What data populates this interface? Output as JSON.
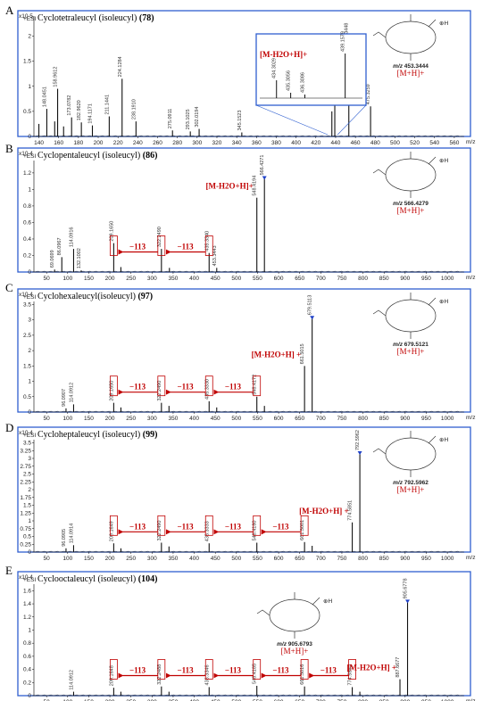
{
  "chart_data": [
    {
      "type": "bar",
      "panel_letter": "A",
      "scale": "x10 5",
      "ion_mode": "+ESI",
      "title": "Cyclotetraleucyl (isoleucyl)",
      "compound_number": "(78)",
      "x_unit": "m/z",
      "xlim": [
        135,
        570
      ],
      "ylim": [
        0,
        2.4
      ],
      "xticks": [
        140,
        160,
        180,
        200,
        220,
        240,
        260,
        280,
        300,
        320,
        340,
        360,
        380,
        400,
        420,
        440,
        460,
        480,
        500,
        520,
        540,
        560
      ],
      "yticks": [
        0,
        0.5,
        1,
        1.5,
        2
      ],
      "peaks": [
        {
          "x": 140.0,
          "y": 0.25
        },
        {
          "x": 148.0451,
          "y": 0.55,
          "label": "148.0451"
        },
        {
          "x": 156.0,
          "y": 0.3
        },
        {
          "x": 158.9612,
          "y": 0.95,
          "label": "158.9612"
        },
        {
          "x": 165.0,
          "y": 0.2
        },
        {
          "x": 173.0782,
          "y": 0.38,
          "label": "173.0782"
        },
        {
          "x": 182.962,
          "y": 0.28,
          "label": "182.9620"
        },
        {
          "x": 194.1171,
          "y": 0.22,
          "label": "194.1171"
        },
        {
          "x": 211.1441,
          "y": 0.4,
          "label": "211.1441"
        },
        {
          "x": 224.1284,
          "y": 1.15,
          "label": "224.1284"
        },
        {
          "x": 238.191,
          "y": 0.3,
          "label": "238.1910"
        },
        {
          "x": 275.0911,
          "y": 0.12,
          "label": "275.0911"
        },
        {
          "x": 293.1025,
          "y": 0.1,
          "label": "293.1025"
        },
        {
          "x": 302.0194,
          "y": 0.15,
          "label": "302.0194"
        },
        {
          "x": 345.1523,
          "y": 0.08,
          "label": "345.1523"
        },
        {
          "x": 436.2,
          "y": 0.5
        },
        {
          "x": 439.1579,
          "y": 1.05,
          "label": "439.1579"
        },
        {
          "x": 453.3448,
          "y": 1.82,
          "label": "453.3448"
        },
        {
          "x": 475.3259,
          "y": 0.6,
          "label": "475.3259"
        }
      ],
      "inset": {
        "annotation": "[M-H2O+H]+",
        "peaks": [
          {
            "x": 434.3029,
            "y": 0.4,
            "label": "434.3029"
          },
          {
            "x": 435.3056,
            "y": 0.12,
            "label": "435.3056"
          },
          {
            "x": 436.3086,
            "y": 0.08,
            "label": "436.3086"
          },
          {
            "x": 439.1579,
            "y": 1.0,
            "label": "439.1579"
          }
        ]
      },
      "structure": {
        "mz_text": "m/z 453.3444",
        "ion_label": "[M+H]+"
      },
      "annotations": []
    },
    {
      "type": "bar",
      "panel_letter": "B",
      "scale": "x10 4",
      "ion_mode": "+ESI",
      "title": "Cyclopentaleucyl (isoleucyl)",
      "compound_number": "(86)",
      "x_unit": "m/z",
      "xlim": [
        20,
        1040
      ],
      "ylim": [
        0,
        1.35
      ],
      "xticks": [
        50,
        100,
        150,
        200,
        250,
        300,
        350,
        400,
        450,
        500,
        550,
        600,
        650,
        700,
        750,
        800,
        850,
        900,
        950,
        1000
      ],
      "yticks": [
        0,
        0.2,
        0.4,
        0.6,
        0.8,
        1,
        1.2
      ],
      "peaks": [
        {
          "x": 69.0699,
          "y": 0.03,
          "label": "69.0699"
        },
        {
          "x": 86.0967,
          "y": 0.18,
          "label": "86.0967"
        },
        {
          "x": 114.0916,
          "y": 0.28,
          "label": "114.0916"
        },
        {
          "x": 132.1002,
          "y": 0.02,
          "label": "132.1002"
        },
        {
          "x": 209.165,
          "y": 0.35,
          "label": "209.1650"
        },
        {
          "x": 226.1,
          "y": 0.06
        },
        {
          "x": 322.249,
          "y": 0.28,
          "label": "322.2490"
        },
        {
          "x": 341.2,
          "y": 0.05
        },
        {
          "x": 435.334,
          "y": 0.23,
          "label": "435.3340"
        },
        {
          "x": 453.3443,
          "y": 0.05,
          "label": "453.3443"
        },
        {
          "x": 548.4194,
          "y": 0.9,
          "label": "548.4194"
        },
        {
          "x": 566.4271,
          "y": 1.15,
          "label": "566.4271"
        }
      ],
      "structure": {
        "mz_text": "m/z 566.4279",
        "ion_label": "[M+H]+"
      },
      "m_h2o_label": "[M-H2O+H]+",
      "loss_label": "−113"
    },
    {
      "type": "bar",
      "panel_letter": "C",
      "scale": "x10 4",
      "ion_mode": "+ESI",
      "title": "Cyclohexaleucyl(isoleucyl)",
      "compound_number": "(97)",
      "x_unit": "m/z",
      "xlim": [
        20,
        1040
      ],
      "ylim": [
        0,
        3.6
      ],
      "xticks": [
        50,
        100,
        150,
        200,
        250,
        300,
        350,
        400,
        450,
        500,
        550,
        600,
        650,
        700,
        750,
        800,
        850,
        900,
        950,
        1000
      ],
      "yticks": [
        0,
        0.5,
        1,
        1.5,
        2,
        2.5,
        3,
        3.5
      ],
      "peaks": [
        {
          "x": 96.0907,
          "y": 0.12,
          "label": "96.0907"
        },
        {
          "x": 114.0912,
          "y": 0.25,
          "label": "114.0912"
        },
        {
          "x": 209.165,
          "y": 0.3,
          "label": "209.1650"
        },
        {
          "x": 226.2,
          "y": 0.15
        },
        {
          "x": 322.249,
          "y": 0.3,
          "label": "322.2490"
        },
        {
          "x": 340.2,
          "y": 0.2
        },
        {
          "x": 435.333,
          "y": 0.35,
          "label": "435.3330"
        },
        {
          "x": 453.3,
          "y": 0.15
        },
        {
          "x": 548.4172,
          "y": 0.5,
          "label": "548.4172"
        },
        {
          "x": 566.4,
          "y": 0.2
        },
        {
          "x": 661.5015,
          "y": 1.5,
          "label": "661.5015"
        },
        {
          "x": 679.5113,
          "y": 3.1,
          "label": "679.5113"
        }
      ],
      "structure": {
        "mz_text": "m/z 679.5121",
        "ion_label": "[M+H]+"
      },
      "m_h2o_label": "[M-H2O+H] +",
      "loss_label": "−113"
    },
    {
      "type": "bar",
      "panel_letter": "D",
      "scale": "x10 4",
      "ion_mode": "+ESI",
      "title": "Cycloheptaleucyl (isoleucyl)",
      "compound_number": "(99)",
      "x_unit": "m/z",
      "xlim": [
        20,
        1040
      ],
      "ylim": [
        0,
        3.6
      ],
      "xticks": [
        50,
        100,
        150,
        200,
        250,
        300,
        350,
        400,
        450,
        500,
        550,
        600,
        650,
        700,
        750,
        800,
        850,
        900,
        950,
        1000
      ],
      "yticks": [
        0,
        0.25,
        0.5,
        0.75,
        1,
        1.25,
        1.5,
        1.75,
        2,
        2.25,
        2.5,
        2.75,
        3,
        3.25,
        3.5
      ],
      "peaks": [
        {
          "x": 96.0905,
          "y": 0.12,
          "label": "96.0905"
        },
        {
          "x": 114.0914,
          "y": 0.22,
          "label": "114.0914"
        },
        {
          "x": 209.1649,
          "y": 0.28,
          "label": "209.1649"
        },
        {
          "x": 226.2,
          "y": 0.12
        },
        {
          "x": 322.249,
          "y": 0.3,
          "label": "322.2490"
        },
        {
          "x": 340.2,
          "y": 0.18
        },
        {
          "x": 435.3333,
          "y": 0.28,
          "label": "435.3333"
        },
        {
          "x": 548.418,
          "y": 0.3,
          "label": "548.4180"
        },
        {
          "x": 661.5001,
          "y": 0.32,
          "label": "661.5001"
        },
        {
          "x": 679.5,
          "y": 0.2
        },
        {
          "x": 774.5851,
          "y": 0.95,
          "label": "774.5851"
        },
        {
          "x": 792.5962,
          "y": 3.2,
          "label": "792.5962"
        }
      ],
      "structure": {
        "mz_text": "m/z 792.5962",
        "ion_label": "[M+H]+"
      },
      "m_h2o_label": "[M-H2O+H] +",
      "loss_label": "−113"
    },
    {
      "type": "bar",
      "panel_letter": "E",
      "scale": "x10 4",
      "ion_mode": "+ESI",
      "title": "Cyclooctaleucyl (isoleucyl)",
      "compound_number": "(104)",
      "x_unit": "m/z",
      "xlim": [
        20,
        1040
      ],
      "ylim": [
        0,
        1.7
      ],
      "xticks": [
        50,
        100,
        150,
        200,
        250,
        300,
        350,
        400,
        450,
        500,
        550,
        600,
        650,
        700,
        750,
        800,
        850,
        900,
        950,
        1000
      ],
      "yticks": [
        0,
        0.2,
        0.4,
        0.6,
        0.8,
        1,
        1.2,
        1.4,
        1.6
      ],
      "peaks": [
        {
          "x": 114.0912,
          "y": 0.06,
          "label": "114.0912"
        },
        {
          "x": 209.1648,
          "y": 0.12,
          "label": "209.1648"
        },
        {
          "x": 226.1,
          "y": 0.06
        },
        {
          "x": 322.2488,
          "y": 0.14,
          "label": "322.2488"
        },
        {
          "x": 340.2,
          "y": 0.06
        },
        {
          "x": 435.3346,
          "y": 0.13,
          "label": "435.3346"
        },
        {
          "x": 548.4185,
          "y": 0.15,
          "label": "548.4185"
        },
        {
          "x": 661.5016,
          "y": 0.14,
          "label": "661.5016"
        },
        {
          "x": 774.586,
          "y": 0.13,
          "label": "774.5860"
        },
        {
          "x": 792.6,
          "y": 0.06
        },
        {
          "x": 887.6677,
          "y": 0.25,
          "label": "887.6677"
        },
        {
          "x": 905.6778,
          "y": 1.45,
          "label": "905.6778"
        }
      ],
      "structure": {
        "mz_text": "m/z 905.6793",
        "ion_label": "[M+H]+"
      },
      "m_h2o_label": "[M-H2O+H] +",
      "loss_label": "−113"
    }
  ]
}
